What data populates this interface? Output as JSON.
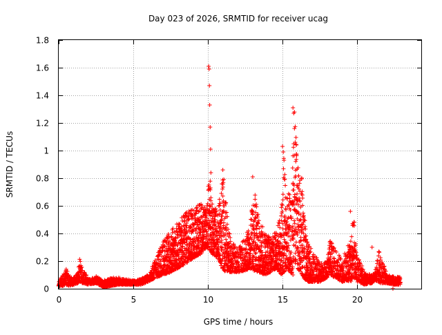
{
  "chart_data": {
    "type": "scatter",
    "title": "Day 023 of 2026, SRMTID for receiver ucag",
    "xlabel": "GPS time / hours",
    "ylabel": "SRMTID / TECUs",
    "xlim": [
      0,
      24.3
    ],
    "ylim": [
      0,
      1.8
    ],
    "grid": true,
    "marker": "plus",
    "color": "#ff0000",
    "x_ticks": [
      {
        "value": 0,
        "label": "0"
      },
      {
        "value": 5,
        "label": "5"
      },
      {
        "value": 10,
        "label": "10"
      },
      {
        "value": 15,
        "label": "15"
      },
      {
        "value": 20,
        "label": "20"
      }
    ],
    "y_ticks": [
      {
        "value": 0,
        "label": "0"
      },
      {
        "value": 0.2,
        "label": "0.2"
      },
      {
        "value": 0.4,
        "label": "0.4"
      },
      {
        "value": 0.6,
        "label": "0.6"
      },
      {
        "value": 0.8,
        "label": "0.8"
      },
      {
        "value": 1.0,
        "label": "1"
      },
      {
        "value": 1.2,
        "label": "1.2"
      },
      {
        "value": 1.4,
        "label": "1.4"
      },
      {
        "value": 1.6,
        "label": "1.6"
      },
      {
        "value": 1.8,
        "label": "1.8"
      }
    ],
    "envelope": {
      "x": [
        0,
        0.3,
        0.5,
        0.7,
        1.0,
        1.3,
        1.4,
        1.6,
        2.0,
        2.5,
        3.0,
        3.5,
        4.0,
        4.5,
        5.0,
        5.5,
        6.0,
        6.5,
        7.0,
        7.5,
        8.0,
        8.5,
        9.0,
        9.5,
        9.9,
        10.1,
        10.3,
        10.7,
        11.0,
        11.5,
        12.0,
        12.5,
        12.8,
        13.1,
        13.4,
        13.8,
        14.2,
        14.6,
        14.9,
        15.1,
        15.3,
        15.6,
        15.8,
        16.0,
        16.3,
        16.6,
        17.0,
        17.5,
        18.0,
        18.2,
        18.5,
        19.0,
        19.3,
        19.6,
        19.8,
        20.0,
        20.5,
        21.0,
        21.2,
        21.5,
        22.0,
        22.5,
        22.9
      ],
      "low": [
        0.02,
        0.02,
        0.03,
        0.02,
        0.03,
        0.04,
        0.05,
        0.04,
        0.03,
        0.04,
        0.01,
        0.02,
        0.03,
        0.03,
        0.03,
        0.03,
        0.05,
        0.08,
        0.1,
        0.12,
        0.15,
        0.18,
        0.22,
        0.25,
        0.3,
        0.28,
        0.25,
        0.22,
        0.13,
        0.12,
        0.12,
        0.13,
        0.15,
        0.13,
        0.12,
        0.1,
        0.12,
        0.15,
        0.1,
        0.12,
        0.15,
        0.1,
        0.2,
        0.15,
        0.1,
        0.05,
        0.05,
        0.05,
        0.08,
        0.1,
        0.08,
        0.05,
        0.06,
        0.05,
        0.08,
        0.05,
        0.03,
        0.04,
        0.06,
        0.04,
        0.04,
        0.03,
        0.03
      ],
      "high": [
        0.06,
        0.1,
        0.15,
        0.09,
        0.08,
        0.12,
        0.22,
        0.15,
        0.07,
        0.09,
        0.06,
        0.08,
        0.08,
        0.07,
        0.06,
        0.07,
        0.1,
        0.22,
        0.35,
        0.42,
        0.48,
        0.55,
        0.58,
        0.62,
        0.58,
        0.84,
        0.6,
        0.58,
        0.85,
        0.38,
        0.28,
        0.38,
        0.45,
        0.72,
        0.55,
        0.4,
        0.38,
        0.42,
        0.55,
        0.98,
        0.75,
        0.65,
        1.3,
        0.9,
        0.8,
        0.35,
        0.3,
        0.18,
        0.2,
        0.37,
        0.3,
        0.2,
        0.3,
        0.4,
        0.55,
        0.25,
        0.12,
        0.1,
        0.12,
        0.3,
        0.1,
        0.09,
        0.09
      ]
    },
    "spikes": [
      {
        "x": 10.05,
        "y": 1.61
      },
      {
        "x": 10.08,
        "y": 1.59
      },
      {
        "x": 10.1,
        "y": 1.47
      },
      {
        "x": 10.12,
        "y": 1.33
      },
      {
        "x": 10.15,
        "y": 1.17
      },
      {
        "x": 10.18,
        "y": 1.01
      },
      {
        "x": 10.2,
        "y": 0.84
      },
      {
        "x": 11.0,
        "y": 0.86
      },
      {
        "x": 15.7,
        "y": 1.31
      },
      {
        "x": 15.75,
        "y": 1.27
      },
      {
        "x": 15.8,
        "y": 1.16
      },
      {
        "x": 15.85,
        "y": 1.06
      },
      {
        "x": 15.0,
        "y": 1.03
      },
      {
        "x": 15.05,
        "y": 0.99
      },
      {
        "x": 15.1,
        "y": 0.93
      },
      {
        "x": 13.0,
        "y": 0.81
      },
      {
        "x": 19.55,
        "y": 0.56
      },
      {
        "x": 21.0,
        "y": 0.3
      },
      {
        "x": 22.4,
        "y": 0.0
      },
      {
        "x": 15.7,
        "y": 0.1
      }
    ]
  }
}
